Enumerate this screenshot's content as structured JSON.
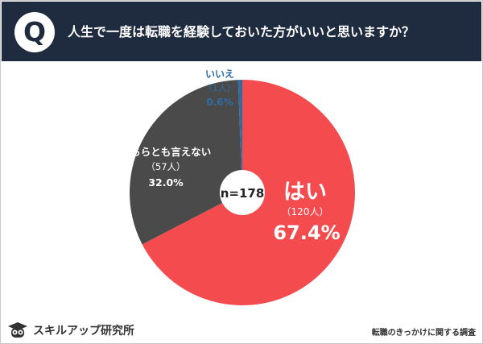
{
  "header": {
    "q_label": "Q",
    "question": "人生で一度は転職を経験しておいた方がいいと思いますか？"
  },
  "colors": {
    "header_bg": "#1f2b3e",
    "yes": "#f44b4f",
    "neutral": "#4a4a4a",
    "no": "#2e6da4"
  },
  "chart_data": {
    "type": "pie",
    "title": "人生で一度は転職を経験しておいた方がいいと思いますか？",
    "total_label": "n=178",
    "total": 178,
    "slices": [
      {
        "label": "はい",
        "count_label": "（120人）",
        "count": 120,
        "percent_label": "67.4%",
        "value": 67.4
      },
      {
        "label": "どちらとも言えない",
        "count_label": "（57人）",
        "count": 57,
        "percent_label": "32.0%",
        "value": 32.0
      },
      {
        "label": "いいえ",
        "count_label": "（1人）",
        "count": 1,
        "percent_label": "0.6%",
        "value": 0.6
      }
    ]
  },
  "footer": {
    "brand": "スキルアップ研究所",
    "caption": "転職のきっかけに関する調査"
  }
}
